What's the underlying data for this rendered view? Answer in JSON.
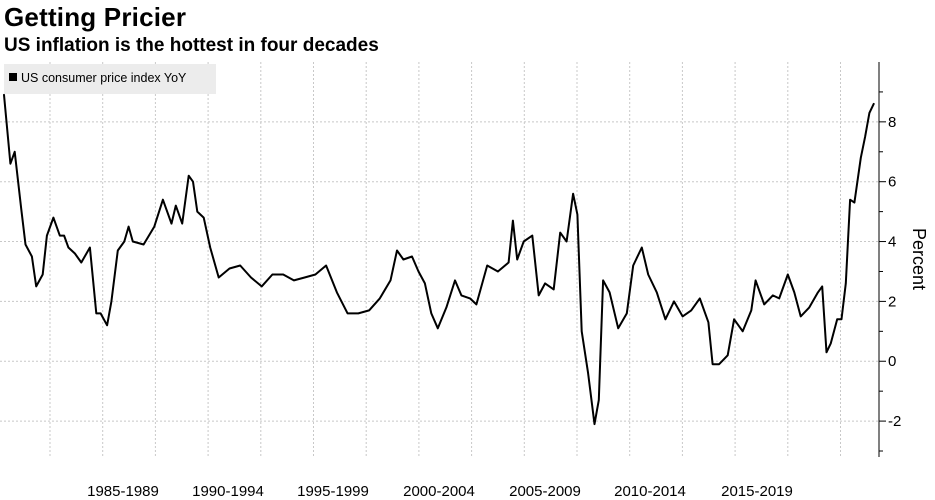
{
  "chart_data": {
    "type": "line",
    "title": "Getting Pricier",
    "subtitle": "US inflation is the hottest in four decades",
    "ylabel": "Percent",
    "xlabel": "",
    "ylim": [
      -3.2,
      10
    ],
    "yticks": [
      -2,
      0,
      2,
      4,
      6,
      8
    ],
    "xlim": [
      1982.0,
      2022.7
    ],
    "x_tick_labels": [
      "1985-1989",
      "1990-1994",
      "1995-1999",
      "2000-2004",
      "2005-2009",
      "2010-2014",
      "2015-2019"
    ],
    "legend": {
      "position": "top-left",
      "entries": [
        "US consumer price index YoY"
      ]
    },
    "grid": true,
    "colors": {
      "line": "#000000",
      "grid": "#c8c8c8",
      "legend_bg": "#ececec"
    },
    "series": [
      {
        "name": "US consumer price index YoY",
        "x": [
          1982.0,
          1982.3,
          1982.5,
          1982.8,
          1983.0,
          1983.3,
          1983.5,
          1983.8,
          1984.0,
          1984.3,
          1984.6,
          1984.8,
          1985.0,
          1985.3,
          1985.6,
          1986.0,
          1986.3,
          1986.5,
          1986.8,
          1987.0,
          1987.3,
          1987.6,
          1987.8,
          1988.0,
          1988.5,
          1989.0,
          1989.4,
          1989.8,
          1990.0,
          1990.3,
          1990.6,
          1990.8,
          1991.0,
          1991.3,
          1991.6,
          1992.0,
          1992.5,
          1993.0,
          1993.5,
          1994.0,
          1994.5,
          1995.0,
          1995.5,
          1996.0,
          1996.5,
          1997.0,
          1997.5,
          1998.0,
          1998.5,
          1999.0,
          1999.5,
          2000.0,
          2000.3,
          2000.6,
          2001.0,
          2001.3,
          2001.6,
          2001.9,
          2002.2,
          2002.6,
          2003.0,
          2003.3,
          2003.7,
          2004.0,
          2004.5,
          2005.0,
          2005.5,
          2005.7,
          2005.9,
          2006.2,
          2006.6,
          2006.9,
          2007.2,
          2007.6,
          2007.9,
          2008.2,
          2008.5,
          2008.7,
          2008.9,
          2009.2,
          2009.5,
          2009.7,
          2009.9,
          2010.2,
          2010.6,
          2011.0,
          2011.3,
          2011.7,
          2012.0,
          2012.4,
          2012.8,
          2013.2,
          2013.6,
          2014.0,
          2014.4,
          2014.8,
          2015.0,
          2015.3,
          2015.7,
          2016.0,
          2016.4,
          2016.8,
          2017.0,
          2017.4,
          2017.8,
          2018.1,
          2018.5,
          2018.8,
          2019.1,
          2019.5,
          2019.9,
          2020.1,
          2020.3,
          2020.5,
          2020.8,
          2021.0,
          2021.2,
          2021.4,
          2021.6,
          2021.9,
          2022.1,
          2022.3,
          2022.5
        ],
        "values": [
          8.9,
          6.6,
          7.0,
          5.1,
          3.9,
          3.5,
          2.5,
          2.9,
          4.2,
          4.8,
          4.2,
          4.2,
          3.8,
          3.6,
          3.3,
          3.8,
          1.6,
          1.6,
          1.2,
          2.0,
          3.7,
          4.0,
          4.5,
          4.0,
          3.9,
          4.5,
          5.4,
          4.6,
          5.2,
          4.6,
          6.2,
          6.0,
          5.0,
          4.8,
          3.8,
          2.8,
          3.1,
          3.2,
          2.8,
          2.5,
          2.9,
          2.9,
          2.7,
          2.8,
          2.9,
          3.2,
          2.3,
          1.6,
          1.6,
          1.7,
          2.1,
          2.7,
          3.7,
          3.4,
          3.5,
          3.0,
          2.6,
          1.6,
          1.1,
          1.8,
          2.7,
          2.2,
          2.1,
          1.9,
          3.2,
          3.0,
          3.3,
          4.7,
          3.4,
          4.0,
          4.2,
          2.2,
          2.6,
          2.4,
          4.3,
          4.0,
          5.6,
          4.9,
          1.0,
          -0.4,
          -2.1,
          -1.3,
          2.7,
          2.3,
          1.1,
          1.6,
          3.2,
          3.8,
          2.9,
          2.3,
          1.4,
          2.0,
          1.5,
          1.7,
          2.1,
          1.3,
          -0.1,
          -0.1,
          0.2,
          1.4,
          1.0,
          1.7,
          2.7,
          1.9,
          2.2,
          2.1,
          2.9,
          2.3,
          1.5,
          1.8,
          2.3,
          2.5,
          0.3,
          0.6,
          1.4,
          1.4,
          2.6,
          5.4,
          5.3,
          6.8,
          7.5,
          8.3,
          8.6
        ]
      }
    ]
  }
}
